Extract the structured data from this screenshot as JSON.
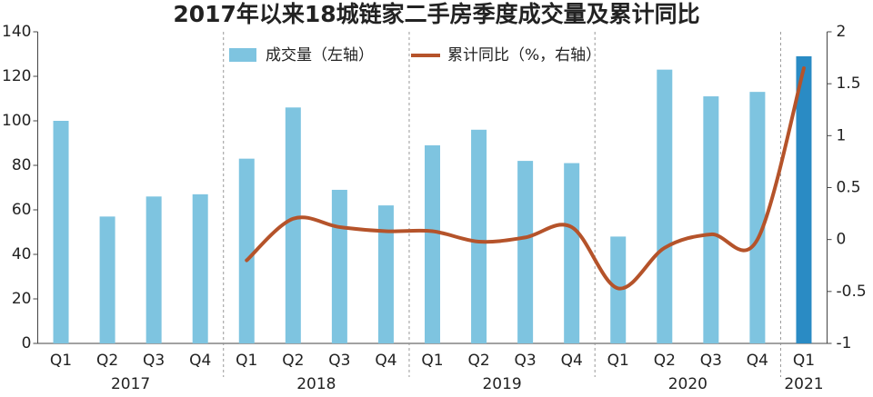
{
  "chart_data": {
    "type": "bar_line",
    "title": "2017年以来18城链家二手房季度成交量及累计同比",
    "groups": [
      {
        "name": "2017",
        "categories": [
          "Q1",
          "Q2",
          "Q3",
          "Q4"
        ]
      },
      {
        "name": "2018",
        "categories": [
          "Q1",
          "Q2",
          "Q3",
          "Q4"
        ]
      },
      {
        "name": "2019",
        "categories": [
          "Q1",
          "Q2",
          "Q3",
          "Q4"
        ]
      },
      {
        "name": "2020",
        "categories": [
          "Q1",
          "Q2",
          "Q3",
          "Q4"
        ]
      },
      {
        "name": "2021",
        "categories": [
          "Q1"
        ]
      }
    ],
    "series": [
      {
        "name": "成交量（左轴）",
        "type": "bar",
        "axis": "y",
        "colors": [
          "#7ec4e0",
          "#7ec4e0",
          "#7ec4e0",
          "#7ec4e0",
          "#7ec4e0",
          "#7ec4e0",
          "#7ec4e0",
          "#7ec4e0",
          "#7ec4e0",
          "#7ec4e0",
          "#7ec4e0",
          "#7ec4e0",
          "#7ec4e0",
          "#7ec4e0",
          "#7ec4e0",
          "#7ec4e0",
          "#2a8bc4"
        ],
        "values": [
          100,
          57,
          66,
          67,
          83,
          106,
          69,
          62,
          89,
          96,
          82,
          81,
          48,
          123,
          111,
          113,
          129
        ]
      },
      {
        "name": "累计同比（%，右轴）",
        "type": "line",
        "axis": "y2",
        "color": "#b5532a",
        "values": [
          null,
          null,
          null,
          null,
          -0.2,
          0.2,
          0.12,
          0.08,
          0.08,
          -0.02,
          0.02,
          0.12,
          -0.47,
          -0.08,
          0.05,
          0.0,
          1.65
        ]
      }
    ],
    "ylim": [
      0,
      140
    ],
    "yticks": [
      0,
      20,
      40,
      60,
      80,
      100,
      120,
      140
    ],
    "y2lim": [
      -1,
      2
    ],
    "y2ticks": [
      -1,
      -0.5,
      0,
      0.5,
      1,
      1.5,
      2
    ]
  }
}
